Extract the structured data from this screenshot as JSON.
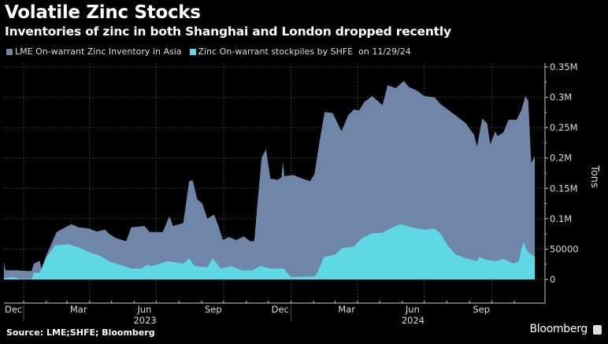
{
  "chart_data": {
    "type": "area",
    "title": "Volatile Zinc Stocks",
    "subtitle": "Inventories of zinc in both Shanghai and London dropped recently",
    "legend_suffix": "on 11/29/24",
    "legend_placement": "top-left",
    "ylabel": "Tons",
    "y_axis_side": "right",
    "ylim": [
      -40000,
      350000
    ],
    "grid": true,
    "y_ticks": [
      {
        "value": 350000,
        "label": "0.35M"
      },
      {
        "value": 300000,
        "label": "0.3M"
      },
      {
        "value": 250000,
        "label": "0.25M"
      },
      {
        "value": 200000,
        "label": "0.2M"
      },
      {
        "value": 150000,
        "label": "0.15M"
      },
      {
        "value": 100000,
        "label": "0.1M"
      },
      {
        "value": 50000,
        "label": "50000"
      },
      {
        "value": 0,
        "label": "0"
      }
    ],
    "x_ticks": [
      {
        "date": "2022-12-10",
        "label": "Dec"
      },
      {
        "date": "2023-03-15",
        "label": "Mar"
      },
      {
        "date": "2023-06-15",
        "label": "Jun"
      },
      {
        "date": "2023-09-15",
        "label": "Sep"
      },
      {
        "date": "2023-12-15",
        "label": "Dec"
      },
      {
        "date": "2024-03-15",
        "label": "Mar"
      },
      {
        "date": "2024-06-15",
        "label": "Jun"
      },
      {
        "date": "2024-09-15",
        "label": "Sep"
      }
    ],
    "year_labels": [
      {
        "date": "2023-06-15",
        "label": "2023"
      },
      {
        "date": "2024-06-15",
        "label": "2024"
      }
    ],
    "series": [
      {
        "name": "LME On-warrant Zinc Inventory in Asia",
        "color": "#6f86a8",
        "points": [
          [
            "2022-12-05",
            30000
          ],
          [
            "2022-12-07",
            15000
          ],
          [
            "2022-12-24",
            15000
          ],
          [
            "2023-01-04",
            14000
          ],
          [
            "2023-01-12",
            14000
          ],
          [
            "2023-01-15",
            26000
          ],
          [
            "2023-01-23",
            31000
          ],
          [
            "2023-01-26",
            12000
          ],
          [
            "2023-01-31",
            37000
          ],
          [
            "2023-02-15",
            78000
          ],
          [
            "2023-03-07",
            91000
          ],
          [
            "2023-03-17",
            86000
          ],
          [
            "2023-03-31",
            84000
          ],
          [
            "2023-04-11",
            79000
          ],
          [
            "2023-04-22",
            82000
          ],
          [
            "2023-04-29",
            74000
          ],
          [
            "2023-05-07",
            68000
          ],
          [
            "2023-05-21",
            63000
          ],
          [
            "2023-05-28",
            86000
          ],
          [
            "2023-06-15",
            88000
          ],
          [
            "2023-06-22",
            78000
          ],
          [
            "2023-07-10",
            78000
          ],
          [
            "2023-07-19",
            104000
          ],
          [
            "2023-07-24",
            88000
          ],
          [
            "2023-08-07",
            93000
          ],
          [
            "2023-08-15",
            162000
          ],
          [
            "2023-08-20",
            163000
          ],
          [
            "2023-08-26",
            132000
          ],
          [
            "2023-09-02",
            125000
          ],
          [
            "2023-09-09",
            100000
          ],
          [
            "2023-09-18",
            107000
          ],
          [
            "2023-09-24",
            88000
          ],
          [
            "2023-09-30",
            65000
          ],
          [
            "2023-10-08",
            70000
          ],
          [
            "2023-10-18",
            65000
          ],
          [
            "2023-10-29",
            71000
          ],
          [
            "2023-11-06",
            63000
          ],
          [
            "2023-11-12",
            63000
          ],
          [
            "2023-11-16",
            123000
          ],
          [
            "2023-11-22",
            201000
          ],
          [
            "2023-11-28",
            214000
          ],
          [
            "2023-12-04",
            166000
          ],
          [
            "2023-12-14",
            164000
          ],
          [
            "2023-12-19",
            168000
          ],
          [
            "2023-12-21",
            194000
          ],
          [
            "2023-12-23",
            170000
          ],
          [
            "2024-01-04",
            172000
          ],
          [
            "2024-01-19",
            165000
          ],
          [
            "2024-01-27",
            162000
          ],
          [
            "2024-02-02",
            173000
          ],
          [
            "2024-02-09",
            227000
          ],
          [
            "2024-02-16",
            276000
          ],
          [
            "2024-02-27",
            274000
          ],
          [
            "2024-03-10",
            244000
          ],
          [
            "2024-03-19",
            270000
          ],
          [
            "2024-03-27",
            280000
          ],
          [
            "2024-04-03",
            278000
          ],
          [
            "2024-04-10",
            292000
          ],
          [
            "2024-04-21",
            302000
          ],
          [
            "2024-05-05",
            287000
          ],
          [
            "2024-05-12",
            320000
          ],
          [
            "2024-05-23",
            315000
          ],
          [
            "2024-06-03",
            327000
          ],
          [
            "2024-06-10",
            317000
          ],
          [
            "2024-06-21",
            311000
          ],
          [
            "2024-07-01",
            302000
          ],
          [
            "2024-07-15",
            300000
          ],
          [
            "2024-07-23",
            289000
          ],
          [
            "2024-08-03",
            279000
          ],
          [
            "2024-08-13",
            270000
          ],
          [
            "2024-08-27",
            257000
          ],
          [
            "2024-09-07",
            238000
          ],
          [
            "2024-09-11",
            219000
          ],
          [
            "2024-09-18",
            265000
          ],
          [
            "2024-09-25",
            257000
          ],
          [
            "2024-09-29",
            222000
          ],
          [
            "2024-10-06",
            244000
          ],
          [
            "2024-10-09",
            236000
          ],
          [
            "2024-10-17",
            242000
          ],
          [
            "2024-10-24",
            263000
          ],
          [
            "2024-11-04",
            263000
          ],
          [
            "2024-11-11",
            280000
          ],
          [
            "2024-11-16",
            302000
          ],
          [
            "2024-11-20",
            294000
          ],
          [
            "2024-11-24",
            192000
          ],
          [
            "2024-11-29",
            203000
          ]
        ]
      },
      {
        "name": "Zinc On-warrant stockpiles by SHFE",
        "color": "#5fd8e6",
        "points": [
          [
            "2022-12-05",
            2000
          ],
          [
            "2022-12-18",
            4000
          ],
          [
            "2022-12-28",
            1000
          ],
          [
            "2023-01-12",
            1000
          ],
          [
            "2023-01-15",
            11000
          ],
          [
            "2023-01-23",
            11000
          ],
          [
            "2023-01-30",
            32000
          ],
          [
            "2023-02-13",
            56000
          ],
          [
            "2023-03-03",
            58000
          ],
          [
            "2023-03-17",
            53000
          ],
          [
            "2023-03-31",
            45000
          ],
          [
            "2023-04-15",
            39000
          ],
          [
            "2023-04-29",
            29000
          ],
          [
            "2023-05-13",
            24000
          ],
          [
            "2023-05-28",
            18000
          ],
          [
            "2023-06-11",
            18000
          ],
          [
            "2023-06-18",
            24000
          ],
          [
            "2023-06-25",
            22000
          ],
          [
            "2023-07-17",
            30000
          ],
          [
            "2023-08-07",
            26000
          ],
          [
            "2023-08-15",
            35000
          ],
          [
            "2023-08-22",
            22000
          ],
          [
            "2023-09-09",
            20000
          ],
          [
            "2023-09-16",
            35000
          ],
          [
            "2023-09-27",
            18000
          ],
          [
            "2023-10-11",
            22000
          ],
          [
            "2023-10-26",
            15000
          ],
          [
            "2023-11-09",
            15000
          ],
          [
            "2023-11-20",
            22000
          ],
          [
            "2023-12-04",
            18000
          ],
          [
            "2023-12-22",
            18000
          ],
          [
            "2024-01-01",
            4000
          ],
          [
            "2024-02-02",
            5000
          ],
          [
            "2024-02-06",
            11000
          ],
          [
            "2024-02-15",
            37000
          ],
          [
            "2024-03-01",
            41000
          ],
          [
            "2024-03-11",
            52000
          ],
          [
            "2024-03-27",
            54000
          ],
          [
            "2024-04-06",
            67000
          ],
          [
            "2024-04-21",
            76000
          ],
          [
            "2024-05-05",
            77000
          ],
          [
            "2024-05-19",
            86000
          ],
          [
            "2024-05-30",
            91000
          ],
          [
            "2024-06-13",
            86000
          ],
          [
            "2024-07-01",
            82000
          ],
          [
            "2024-07-15",
            84000
          ],
          [
            "2024-07-23",
            76000
          ],
          [
            "2024-08-03",
            54000
          ],
          [
            "2024-08-13",
            41000
          ],
          [
            "2024-08-27",
            35000
          ],
          [
            "2024-09-11",
            30000
          ],
          [
            "2024-09-14",
            37000
          ],
          [
            "2024-09-25",
            32000
          ],
          [
            "2024-10-06",
            30000
          ],
          [
            "2024-10-17",
            34000
          ],
          [
            "2024-10-31",
            26000
          ],
          [
            "2024-11-07",
            30000
          ],
          [
            "2024-11-13",
            62000
          ],
          [
            "2024-11-19",
            46000
          ],
          [
            "2024-11-29",
            37000
          ]
        ]
      }
    ]
  },
  "footer": {
    "source": "Source: LME;SHFE; Bloomberg",
    "brand": "Bloomberg"
  }
}
